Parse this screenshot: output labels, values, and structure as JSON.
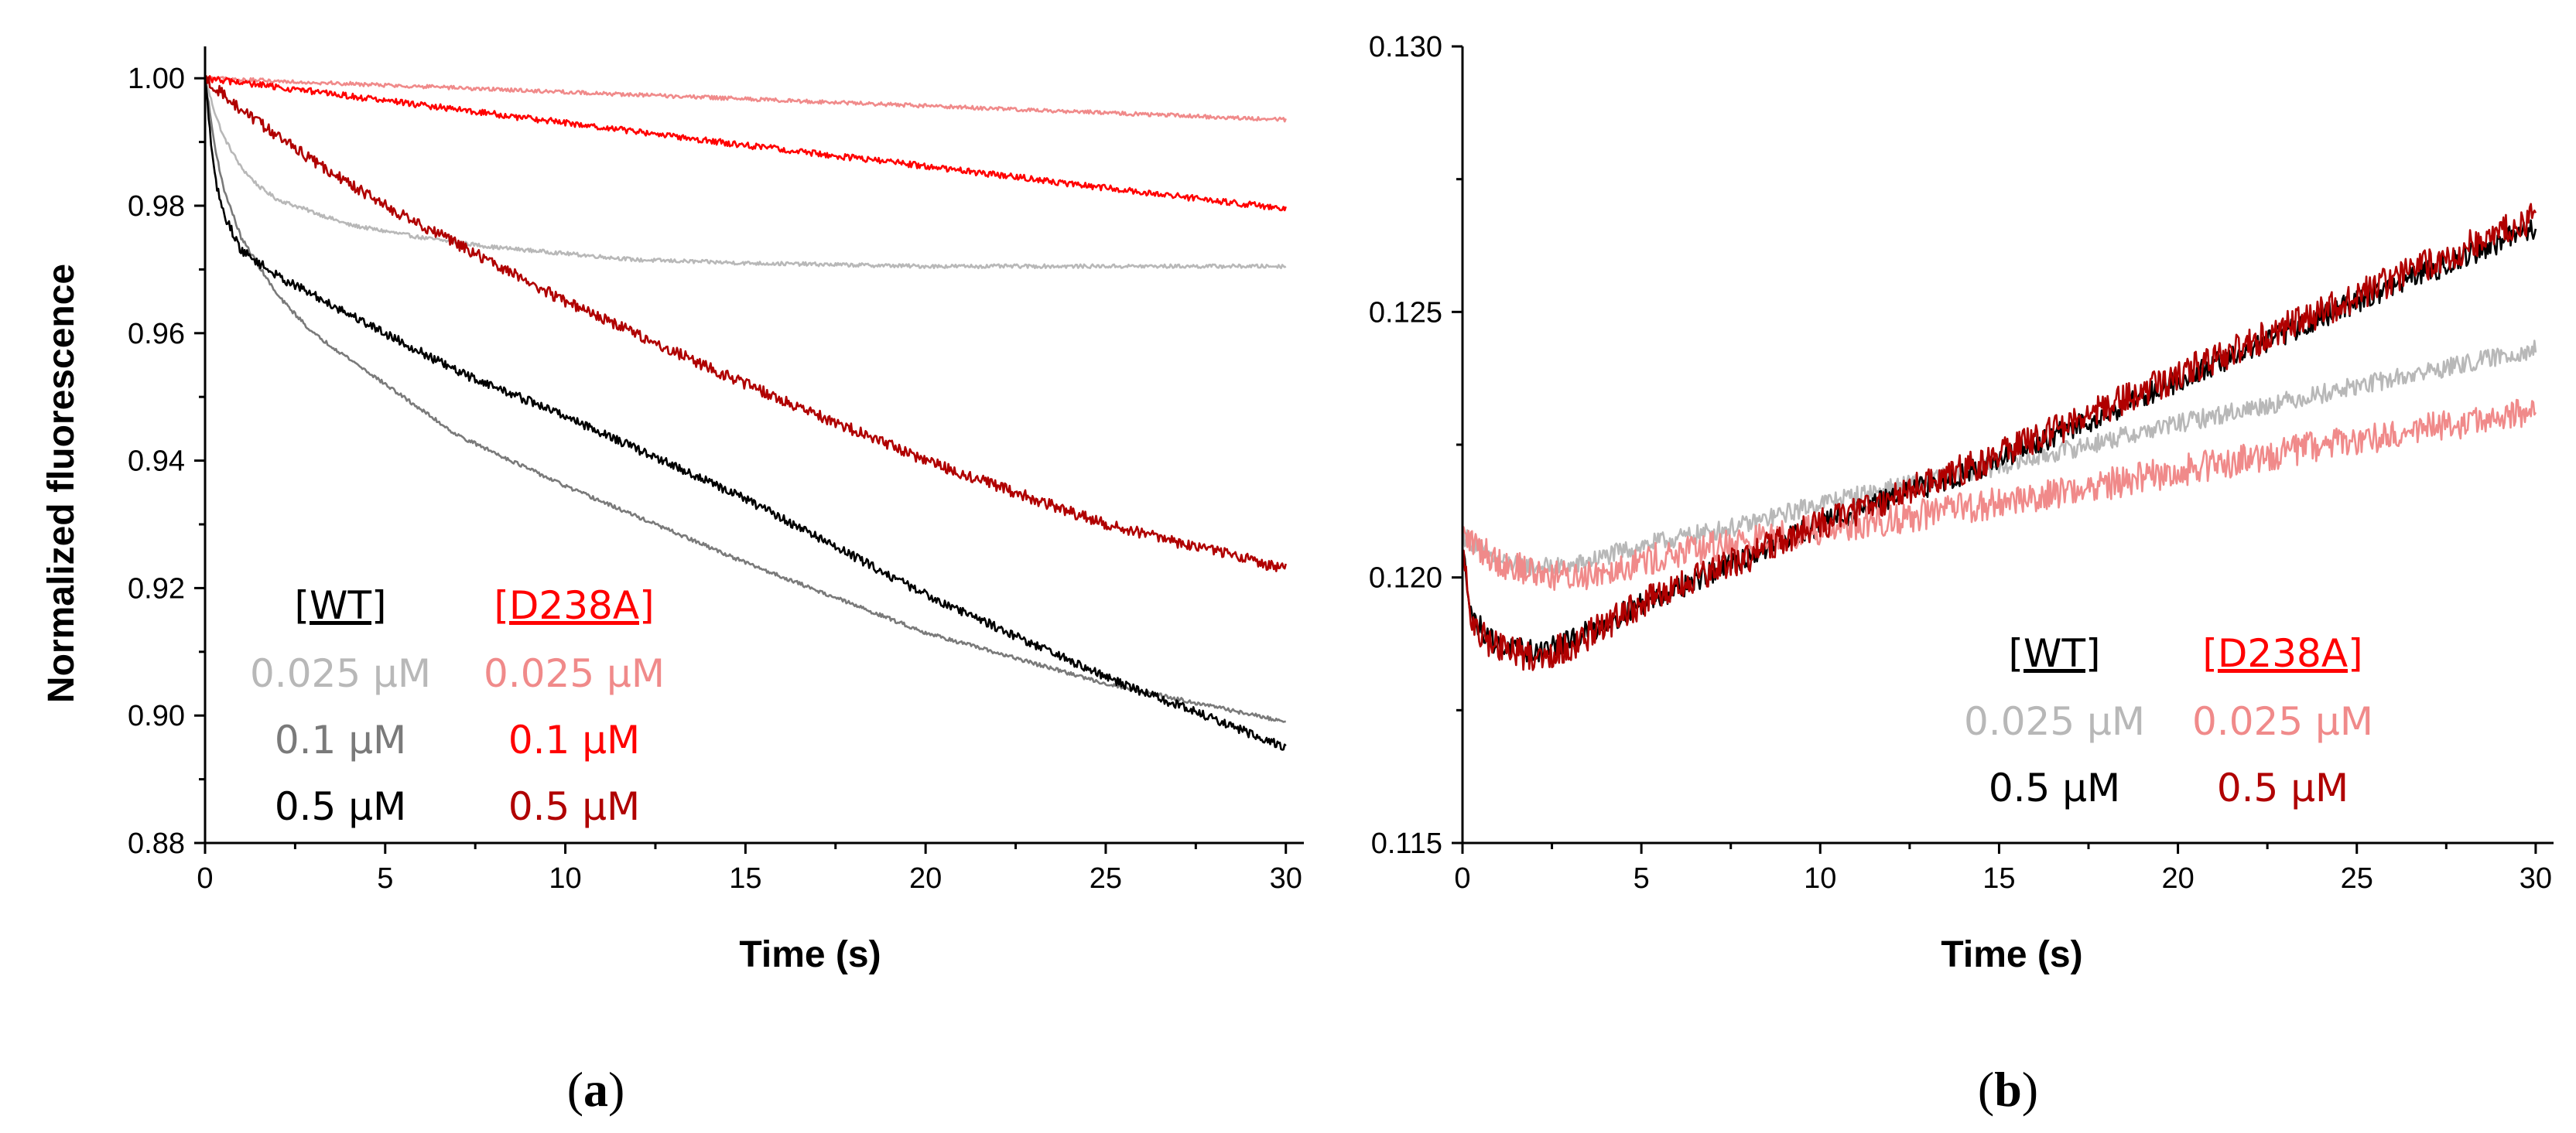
{
  "colors": {
    "wt_0025": "#b8b8b8",
    "wt_01": "#7a7a7a",
    "wt_05": "#000000",
    "d238a_0025": "#f08a8a",
    "d238a_01": "#ff0000",
    "d238a_05": "#b00000"
  },
  "chart_data": [
    {
      "panel": "a",
      "type": "line",
      "xlabel": "Time (s)",
      "ylabel": "Normalized fluorescence",
      "xlim": [
        0,
        30.5
      ],
      "ylim": [
        0.88,
        1.005
      ],
      "xticks": [
        0,
        5,
        10,
        15,
        20,
        25,
        30
      ],
      "yticks": [
        0.88,
        0.9,
        0.92,
        0.94,
        0.96,
        0.98,
        1.0
      ],
      "ytick_labels": [
        "0.88",
        "0.90",
        "0.92",
        "0.94",
        "0.96",
        "0.98",
        "1.00"
      ],
      "legend_position": "bottom-left",
      "legend": {
        "wt_header": "[WT]",
        "d238a_header": "[D238A]",
        "wt_rows": [
          "0.025 μM",
          "0.1 μM",
          "0.5 μM"
        ],
        "d238a_rows": [
          "0.025 μM",
          "0.1 μM",
          "0.5 μM"
        ]
      },
      "series": [
        {
          "name": "WT 0.025 μM",
          "color_key": "wt_0025",
          "noise": 0.0003,
          "x": [
            0,
            0.25,
            0.5,
            1,
            1.5,
            2,
            3,
            4,
            5,
            6,
            8,
            10,
            12,
            15,
            20,
            25,
            30
          ],
          "y": [
            1.0,
            0.995,
            0.991,
            0.986,
            0.983,
            0.981,
            0.979,
            0.977,
            0.976,
            0.975,
            0.9735,
            0.9725,
            0.9715,
            0.971,
            0.9705,
            0.9705,
            0.9705
          ]
        },
        {
          "name": "WT 0.1 μM",
          "color_key": "wt_01",
          "noise": 0.0003,
          "x": [
            0,
            0.25,
            0.5,
            1,
            2,
            3,
            5,
            7,
            10,
            15,
            20,
            25,
            30
          ],
          "y": [
            1.0,
            0.99,
            0.983,
            0.975,
            0.966,
            0.96,
            0.952,
            0.944,
            0.936,
            0.924,
            0.913,
            0.905,
            0.899
          ]
        },
        {
          "name": "WT 0.5 μM",
          "color_key": "wt_05",
          "noise": 0.0007,
          "x": [
            0,
            0.25,
            0.5,
            1,
            2,
            3,
            5,
            7,
            10,
            15,
            20,
            25,
            30
          ],
          "y": [
            1.0,
            0.985,
            0.979,
            0.973,
            0.969,
            0.966,
            0.96,
            0.954,
            0.947,
            0.934,
            0.919,
            0.906,
            0.895
          ]
        },
        {
          "name": "D238A 0.025 μM",
          "color_key": "d238a_0025",
          "noise": 0.0003,
          "x": [
            0,
            30
          ],
          "y": [
            1.0,
            0.9935
          ]
        },
        {
          "name": "D238A 0.1 μM",
          "color_key": "d238a_01",
          "noise": 0.0005,
          "x": [
            0,
            5,
            10,
            15,
            20,
            25,
            30
          ],
          "y": [
            1.0,
            0.9965,
            0.993,
            0.9895,
            0.9862,
            0.9828,
            0.9795
          ]
        },
        {
          "name": "D238A 0.5 μM",
          "color_key": "d238a_05",
          "noise": 0.0009,
          "x": [
            0,
            1,
            2,
            3,
            5,
            7,
            10,
            15,
            20,
            25,
            30
          ],
          "y": [
            1.0,
            0.995,
            0.991,
            0.987,
            0.98,
            0.974,
            0.965,
            0.952,
            0.94,
            0.93,
            0.923
          ]
        }
      ]
    },
    {
      "panel": "b",
      "type": "line",
      "xlabel": "Time (s)",
      "ylabel": "",
      "xlim": [
        0,
        30.5
      ],
      "ylim": [
        0.115,
        0.13
      ],
      "xticks": [
        0,
        5,
        10,
        15,
        20,
        25,
        30
      ],
      "yticks": [
        0.115,
        0.12,
        0.125,
        0.13
      ],
      "ytick_labels": [
        "0.115",
        "0.120",
        "0.125",
        "0.130"
      ],
      "legend_position": "bottom-right",
      "legend": {
        "wt_header": "[WT]",
        "d238a_header": "[D238A]",
        "wt_rows": [
          "0.025 μM",
          "0.5 μM"
        ],
        "d238a_rows": [
          "0.025 μM",
          "0.5 μM"
        ]
      },
      "series": [
        {
          "name": "WT 0.025 μM",
          "color_key": "wt_0025",
          "noise": 0.00018,
          "x": [
            0,
            1,
            2,
            3,
            5,
            8,
            10,
            15,
            20,
            25,
            30
          ],
          "y": [
            0.1208,
            0.1203,
            0.1202,
            0.1202,
            0.1206,
            0.121,
            0.1214,
            0.1221,
            0.1229,
            0.1236,
            0.1243
          ]
        },
        {
          "name": "WT 0.5 μM",
          "color_key": "wt_05",
          "noise": 0.00022,
          "x": [
            0,
            0.3,
            1,
            2,
            3,
            5,
            8,
            10,
            15,
            20,
            25,
            30
          ],
          "y": [
            0.1205,
            0.1192,
            0.1187,
            0.1186,
            0.1188,
            0.1195,
            0.1204,
            0.121,
            0.1222,
            0.1237,
            0.1252,
            0.1266
          ]
        },
        {
          "name": "D238A 0.025 μM",
          "color_key": "d238a_0025",
          "noise": 0.0003,
          "x": [
            0,
            1,
            2,
            3,
            5,
            8,
            10,
            15,
            20,
            25,
            30
          ],
          "y": [
            0.1208,
            0.1203,
            0.1201,
            0.12,
            0.1203,
            0.1207,
            0.1209,
            0.1214,
            0.122,
            0.1226,
            0.1231
          ]
        },
        {
          "name": "D238A 0.5 μM",
          "color_key": "d238a_05",
          "noise": 0.0003,
          "x": [
            0,
            0.3,
            1,
            2,
            3,
            5,
            8,
            10,
            15,
            20,
            25,
            30
          ],
          "y": [
            0.1205,
            0.119,
            0.1187,
            0.1185,
            0.1187,
            0.1195,
            0.1204,
            0.121,
            0.1223,
            0.1238,
            0.1253,
            0.1268
          ]
        }
      ]
    }
  ],
  "panel_labels": {
    "a": {
      "open": "(",
      "letter": "a",
      "close": ")"
    },
    "b": {
      "open": "(",
      "letter": "b",
      "close": ")"
    }
  }
}
